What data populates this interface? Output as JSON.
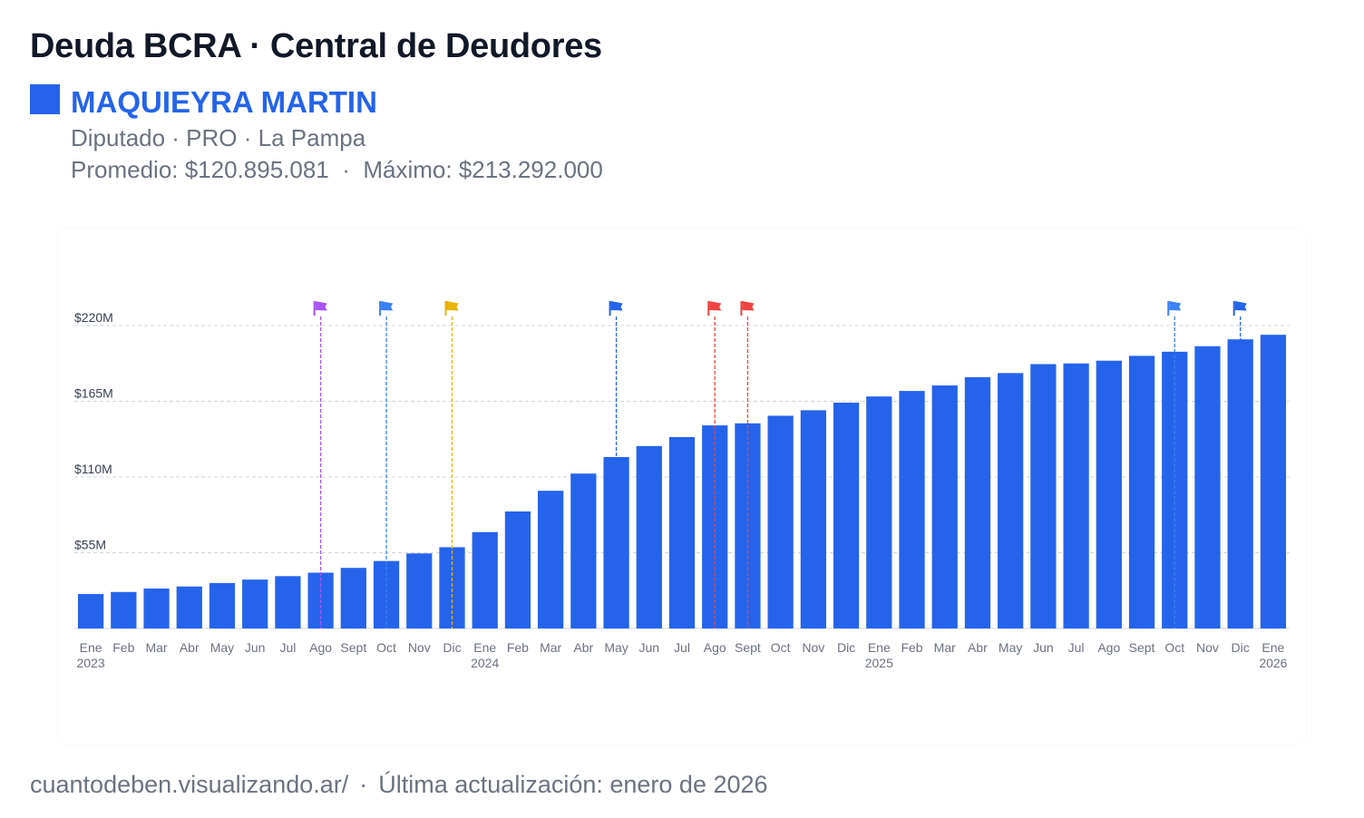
{
  "header": {
    "title": "Deuda BCRA · Central de Deudores",
    "person_name": "MAQUIEYRA MARTIN",
    "person_color": "#2563eb",
    "subtitle": "Diputado · PRO · La Pampa",
    "stats": "Promedio: $120.895.081  ·  Máximo: $213.292.000"
  },
  "footer": {
    "site": "cuantodeben.visualizando.ar/",
    "separator": "·",
    "updated": "Última actualización: enero de 2026"
  },
  "chart_data": {
    "type": "bar",
    "title": "",
    "xlabel": "",
    "ylabel": "",
    "ylim": [
      0,
      220
    ],
    "unit": "millones ARS",
    "grid": true,
    "bar_color": "#2563eb",
    "y_ticks": [
      {
        "value": 55,
        "label": "$55M"
      },
      {
        "value": 110,
        "label": "$110M"
      },
      {
        "value": 165,
        "label": "$165M"
      },
      {
        "value": 220,
        "label": "$220M"
      }
    ],
    "categories": [
      "Ene",
      "Feb",
      "Mar",
      "Abr",
      "May",
      "Jun",
      "Jul",
      "Ago",
      "Sept",
      "Oct",
      "Nov",
      "Dic",
      "Ene",
      "Feb",
      "Mar",
      "Abr",
      "May",
      "Jun",
      "Jul",
      "Ago",
      "Sept",
      "Oct",
      "Nov",
      "Dic",
      "Ene",
      "Feb",
      "Mar",
      "Abr",
      "May",
      "Jun",
      "Jul",
      "Ago",
      "Sept",
      "Oct",
      "Nov",
      "Dic",
      "Ene"
    ],
    "year_labels": [
      {
        "index": 0,
        "label": "2023"
      },
      {
        "index": 12,
        "label": "2024"
      },
      {
        "index": 24,
        "label": "2025"
      },
      {
        "index": 36,
        "label": "2026"
      }
    ],
    "values": [
      25,
      26.5,
      29,
      30.5,
      33,
      35.5,
      38,
      40.5,
      44,
      49,
      54.5,
      59,
      70,
      85,
      100,
      112.5,
      124.5,
      132.5,
      139,
      147.5,
      149,
      154.5,
      158.5,
      164,
      168.5,
      172.5,
      176.5,
      182.5,
      185.5,
      192,
      192.5,
      194.5,
      198,
      201,
      205,
      210,
      213.3
    ],
    "markers": [
      {
        "index": 7,
        "color": "#a855f7"
      },
      {
        "index": 9,
        "color": "#3b82f6"
      },
      {
        "index": 11,
        "color": "#eab308"
      },
      {
        "index": 16,
        "color": "#2563eb"
      },
      {
        "index": 19,
        "color": "#ef4444"
      },
      {
        "index": 20,
        "color": "#ef4444"
      },
      {
        "index": 33,
        "color": "#3b82f6"
      },
      {
        "index": 35,
        "color": "#2563eb"
      }
    ]
  }
}
